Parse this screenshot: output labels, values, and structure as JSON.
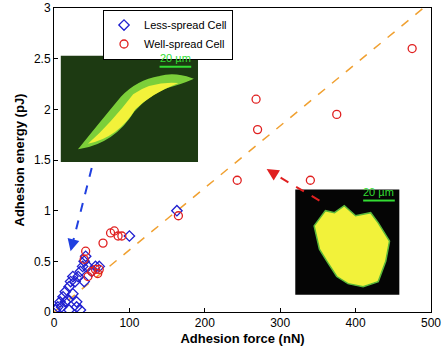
{
  "chart_data": {
    "type": "scatter",
    "x_label": "Adhesion force (nN)",
    "y_label": "Adhesion energy (pJ)",
    "xlim": [
      0,
      500
    ],
    "xticks": [
      0,
      100,
      200,
      300,
      400,
      500
    ],
    "ylim": [
      0,
      3
    ],
    "yticks": [
      0,
      0.5,
      1,
      1.5,
      2,
      2.5,
      3
    ],
    "grid": false,
    "legend": "upper left",
    "series": [
      {
        "name": "Less-spread Cell",
        "color": "#1f1fd0",
        "marker": "diamond",
        "x": [
          2,
          5,
          8,
          10,
          12,
          15,
          15,
          18,
          20,
          22,
          25,
          25,
          28,
          30,
          30,
          32,
          35,
          38,
          40,
          40,
          42,
          45,
          50,
          55,
          60,
          100,
          163,
          20,
          35
        ],
        "values": [
          0.02,
          0.05,
          0.1,
          0.05,
          0.15,
          0.2,
          0.1,
          0.12,
          0.25,
          0.3,
          0.18,
          0.35,
          0.3,
          0.1,
          0.05,
          0.35,
          0.4,
          0.45,
          0.3,
          0.5,
          0.55,
          0.45,
          0.4,
          0.45,
          0.45,
          0.75,
          1.0,
          0.02,
          0.02
        ]
      },
      {
        "name": "Well-spread Cell",
        "color": "#e02020",
        "marker": "circle",
        "x": [
          40,
          45,
          50,
          55,
          58,
          60,
          65,
          75,
          80,
          85,
          90,
          165,
          243,
          268,
          270,
          340,
          375,
          475,
          42
        ],
        "values": [
          0.52,
          0.35,
          0.4,
          0.42,
          0.38,
          0.42,
          0.68,
          0.78,
          0.8,
          0.75,
          0.75,
          0.95,
          1.3,
          2.1,
          1.8,
          1.3,
          1.95,
          2.6,
          0.6
        ]
      },
      {
        "type": "line",
        "color": "#f0a030",
        "line_style": "dashed",
        "x": [
          0,
          490
        ],
        "values": [
          0,
          3
        ]
      }
    ],
    "annotations": [
      {
        "text": "20 µm"
      },
      {
        "text": "20 µm"
      }
    ]
  }
}
